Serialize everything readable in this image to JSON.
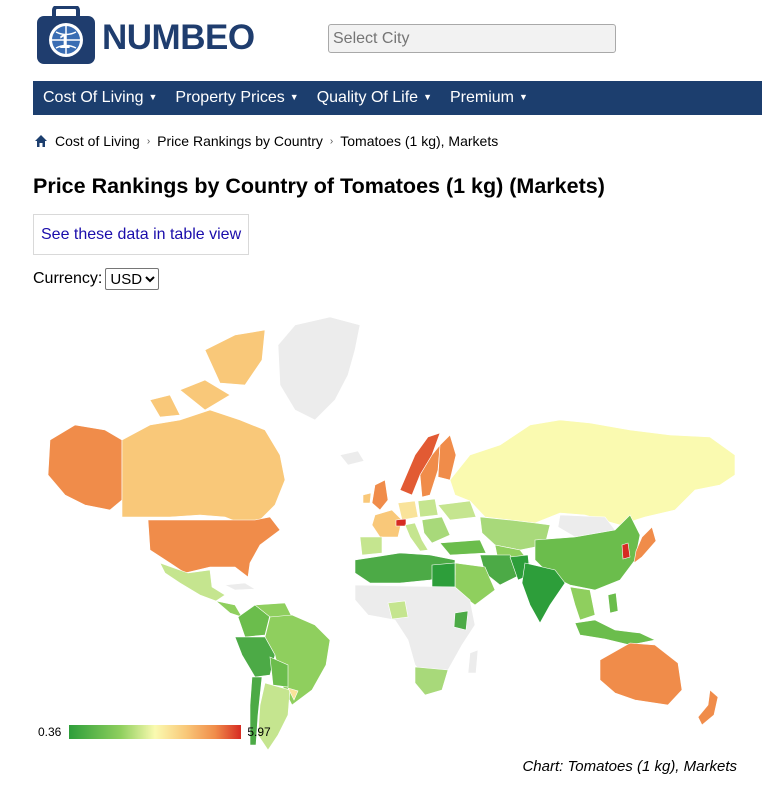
{
  "header": {
    "logo_text": "NUMBEO",
    "search": {
      "placeholder": "Select City",
      "value": ""
    }
  },
  "nav": {
    "items": [
      {
        "label": "Cost Of Living"
      },
      {
        "label": "Property Prices"
      },
      {
        "label": "Quality Of Life"
      },
      {
        "label": "Premium"
      }
    ]
  },
  "breadcrumb": {
    "items": [
      "Cost of Living",
      "Price Rankings by Country",
      "Tomatoes (1 kg), Markets"
    ]
  },
  "page": {
    "title": "Price Rankings by Country of Tomatoes (1 kg) (Markets)",
    "table_link": "See these data in table view",
    "currency_label": "Currency:",
    "currency_value": "USD"
  },
  "legend": {
    "min": "0.36",
    "max": "5.97"
  },
  "caption": "Chart: Tomatoes (1 kg), Markets",
  "colors": {
    "brand": "#1f3d6e",
    "nav_bg": "#1c3e6e",
    "link": "#1a0dab",
    "scale_low": "#2d9e3a",
    "scale_mid": "#fafab0",
    "scale_high": "#d62b22",
    "no_data": "#ececec"
  }
}
